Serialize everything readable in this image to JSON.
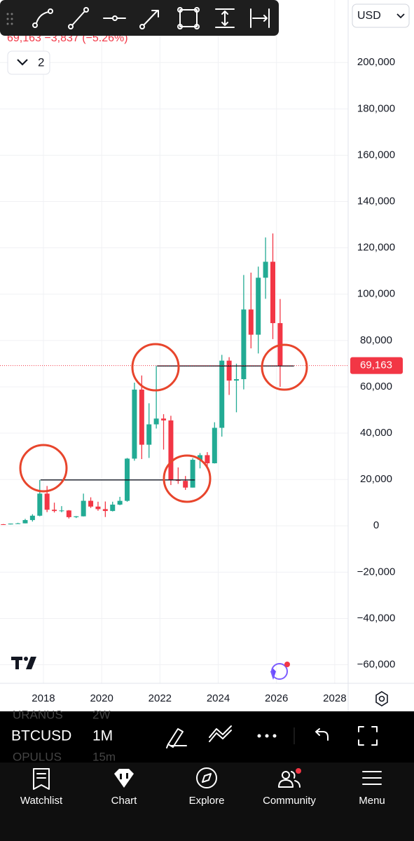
{
  "header": {
    "quote": "69,163 −3,837 (−5.26%)",
    "currency": "USD",
    "indicators_count": 2
  },
  "chart_data": {
    "type": "candlestick",
    "x": [
      2016.625,
      2016.875,
      2017.125,
      2017.375,
      2017.625,
      2017.875,
      2018.125,
      2018.375,
      2018.625,
      2018.875,
      2019.125,
      2019.375,
      2019.625,
      2019.875,
      2020.125,
      2020.375,
      2020.625,
      2020.875,
      2021.125,
      2021.375,
      2021.625,
      2021.875,
      2022.125,
      2022.375,
      2022.625,
      2022.875,
      2023.125,
      2023.375,
      2023.625,
      2023.875,
      2024.125,
      2024.375,
      2024.625,
      2024.875,
      2025.125,
      2025.375,
      2025.625,
      2025.875,
      2026.125
    ],
    "open": [
      670,
      610,
      960,
      1070,
      2480,
      4360,
      13900,
      6930,
      6390,
      6630,
      3740,
      4100,
      10800,
      8300,
      7200,
      6400,
      9140,
      10780,
      29000,
      58800,
      35000,
      43800,
      46300,
      45500,
      19900,
      19400,
      16500,
      28500,
      30500,
      27000,
      42300,
      71300,
      62700,
      63300,
      93400,
      82500,
      107100,
      114000,
      87500
    ],
    "high": [
      780,
      980,
      1300,
      3000,
      5000,
      19800,
      17200,
      9990,
      8500,
      6800,
      4200,
      13900,
      12300,
      10400,
      10500,
      10400,
      12500,
      29300,
      61800,
      64900,
      52900,
      69000,
      48200,
      47500,
      25200,
      21500,
      29200,
      31400,
      31800,
      44700,
      73800,
      72800,
      70000,
      108300,
      109300,
      111900,
      124500,
      126200,
      97900
    ],
    "low": [
      480,
      600,
      890,
      1050,
      1830,
      4100,
      5900,
      5750,
      5850,
      3150,
      3350,
      4050,
      7700,
      6500,
      3800,
      6200,
      8900,
      10400,
      28100,
      28800,
      29300,
      42000,
      32900,
      17600,
      18100,
      15500,
      16500,
      24800,
      24900,
      26900,
      38500,
      56500,
      49000,
      58900,
      76600,
      74400,
      98000,
      80600,
      60000
    ],
    "close": [
      610,
      960,
      1070,
      2480,
      4360,
      13900,
      6930,
      6390,
      6630,
      3740,
      4100,
      10800,
      8300,
      7200,
      6400,
      9140,
      10780,
      29000,
      58800,
      35000,
      43800,
      46300,
      45500,
      19900,
      19400,
      16500,
      28500,
      30500,
      27000,
      42300,
      71300,
      62700,
      63300,
      93400,
      82500,
      107100,
      114000,
      87500,
      69163
    ],
    "up_color": "#22ab94",
    "down_color": "#f23645",
    "xlim": [
      2016.51,
      2028.46
    ],
    "xticks": [
      2018,
      2020,
      2022,
      2024,
      2026,
      2028
    ],
    "ylim": [
      -68000,
      227000
    ],
    "yticks": [
      {
        "value": -60000,
        "label": "−60,000"
      },
      {
        "value": -40000,
        "label": "−40,000"
      },
      {
        "value": -20000,
        "label": "−20,000"
      },
      0,
      {
        "value": 20000,
        "label": "20,000"
      },
      {
        "value": 40000,
        "label": "40,000"
      },
      {
        "value": 60000,
        "label": "60,000"
      },
      {
        "value": 80000,
        "label": "80,000"
      },
      {
        "value": 100000,
        "label": "100,000"
      },
      {
        "value": 120000,
        "label": "120,000"
      },
      {
        "value": 140000,
        "label": "140,000"
      },
      {
        "value": 160000,
        "label": "160,000"
      },
      {
        "value": 180000,
        "label": "180,000"
      },
      {
        "value": 200000,
        "label": "200,000"
      }
    ],
    "grid": true,
    "last_price": {
      "value": 69163,
      "label": "69,163"
    },
    "levels": [
      {
        "value": 19800,
        "x": [
          2017.9,
          2023.2
        ]
      },
      {
        "value": 69000,
        "x": [
          2021.9,
          2026.6
        ]
      }
    ]
  },
  "symbol_bar": {
    "symbol": "BTCUSD",
    "interval": "1M",
    "watchlist_above": {
      "symbol": "URANUS",
      "interval": "2W"
    },
    "watchlist_below": {
      "symbol": "OPULUS",
      "interval": "15m"
    }
  },
  "nav": [
    "Watchlist",
    "Chart",
    "Explore",
    "Community",
    "Menu"
  ]
}
